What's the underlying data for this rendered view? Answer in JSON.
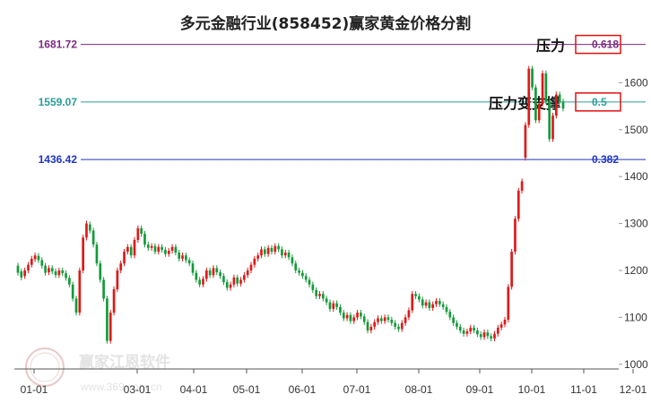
{
  "chart_data": {
    "type": "candlestick",
    "title": "多元金融行业(858452)赢家黄金价格分割",
    "x_ticks": [
      "01-01",
      "03-01",
      "04-01",
      "05-01",
      "06-01",
      "07-01",
      "08-01",
      "09-01",
      "10-01",
      "11-01",
      "12-01"
    ],
    "y_ticks": [
      1000,
      1100,
      1200,
      1300,
      1400,
      1500,
      1600
    ],
    "ylim": [
      990,
      1700
    ],
    "levels": [
      {
        "price_label": "1681.72",
        "price": 1681.72,
        "ratio_label": "0.618",
        "color": "#7b2a7f",
        "annotation": "压力"
      },
      {
        "price_label": "1559.07",
        "price": 1559.07,
        "ratio_label": "0.5",
        "color": "#2a9c9c",
        "annotation": "压力变支撑"
      },
      {
        "price_label": "1436.42",
        "price": 1436.42,
        "ratio_label": "0.382",
        "color": "#1f35c9",
        "annotation": ""
      }
    ],
    "series": [
      {
        "values": [
          [
            1210,
            1195
          ],
          [
            1198,
            1185
          ],
          [
            1188,
            1200
          ],
          [
            1200,
            1212
          ],
          [
            1212,
            1225
          ],
          [
            1224,
            1232
          ],
          [
            1231,
            1222
          ],
          [
            1222,
            1210
          ],
          [
            1210,
            1195
          ],
          [
            1196,
            1205
          ],
          [
            1205,
            1198
          ],
          [
            1198,
            1190
          ],
          [
            1190,
            1200
          ],
          [
            1200,
            1194
          ],
          [
            1194,
            1184
          ],
          [
            1184,
            1170
          ],
          [
            1170,
            1140
          ],
          [
            1140,
            1110
          ],
          [
            1110,
            1200
          ],
          [
            1200,
            1270
          ],
          [
            1270,
            1300
          ],
          [
            1298,
            1285
          ],
          [
            1285,
            1255
          ],
          [
            1255,
            1215
          ],
          [
            1215,
            1180
          ],
          [
            1180,
            1140
          ],
          [
            1140,
            1050
          ],
          [
            1050,
            1110
          ],
          [
            1110,
            1160
          ],
          [
            1160,
            1200
          ],
          [
            1200,
            1215
          ],
          [
            1215,
            1240
          ],
          [
            1240,
            1250
          ],
          [
            1250,
            1232
          ],
          [
            1232,
            1265
          ],
          [
            1265,
            1290
          ],
          [
            1290,
            1278
          ],
          [
            1278,
            1255
          ],
          [
            1255,
            1248
          ],
          [
            1248,
            1252
          ],
          [
            1252,
            1240
          ],
          [
            1240,
            1250
          ],
          [
            1250,
            1244
          ],
          [
            1244,
            1235
          ],
          [
            1235,
            1242
          ],
          [
            1242,
            1250
          ],
          [
            1250,
            1238
          ],
          [
            1238,
            1225
          ],
          [
            1225,
            1232
          ],
          [
            1232,
            1222
          ],
          [
            1222,
            1215
          ],
          [
            1215,
            1195
          ],
          [
            1195,
            1180
          ],
          [
            1180,
            1170
          ],
          [
            1170,
            1182
          ],
          [
            1182,
            1200
          ],
          [
            1200,
            1190
          ],
          [
            1190,
            1205
          ],
          [
            1205,
            1196
          ],
          [
            1196,
            1188
          ],
          [
            1188,
            1175
          ],
          [
            1175,
            1163
          ],
          [
            1163,
            1170
          ],
          [
            1170,
            1185
          ],
          [
            1185,
            1172
          ],
          [
            1172,
            1180
          ],
          [
            1180,
            1190
          ],
          [
            1190,
            1200
          ],
          [
            1200,
            1212
          ],
          [
            1212,
            1225
          ],
          [
            1225,
            1232
          ],
          [
            1232,
            1245
          ],
          [
            1245,
            1235
          ],
          [
            1235,
            1248
          ],
          [
            1248,
            1240
          ],
          [
            1240,
            1252
          ],
          [
            1252,
            1245
          ],
          [
            1245,
            1232
          ],
          [
            1232,
            1238
          ],
          [
            1238,
            1228
          ],
          [
            1228,
            1215
          ],
          [
            1215,
            1200
          ],
          [
            1200,
            1195
          ],
          [
            1195,
            1188
          ],
          [
            1188,
            1180
          ],
          [
            1180,
            1170
          ],
          [
            1170,
            1158
          ],
          [
            1158,
            1145
          ],
          [
            1145,
            1150
          ],
          [
            1150,
            1140
          ],
          [
            1140,
            1132
          ],
          [
            1132,
            1118
          ],
          [
            1118,
            1130
          ],
          [
            1130,
            1122
          ],
          [
            1122,
            1110
          ],
          [
            1110,
            1098
          ],
          [
            1098,
            1105
          ],
          [
            1105,
            1092
          ],
          [
            1092,
            1100
          ],
          [
            1100,
            1110
          ],
          [
            1110,
            1102
          ],
          [
            1102,
            1090
          ],
          [
            1090,
            1072
          ],
          [
            1072,
            1080
          ],
          [
            1080,
            1090
          ],
          [
            1090,
            1098
          ],
          [
            1098,
            1092
          ],
          [
            1092,
            1100
          ],
          [
            1100,
            1095
          ],
          [
            1095,
            1088
          ],
          [
            1088,
            1080
          ],
          [
            1080,
            1075
          ],
          [
            1075,
            1088
          ],
          [
            1088,
            1100
          ],
          [
            1100,
            1115
          ],
          [
            1115,
            1150
          ],
          [
            1150,
            1145
          ],
          [
            1145,
            1138
          ],
          [
            1138,
            1125
          ],
          [
            1125,
            1132
          ],
          [
            1132,
            1120
          ],
          [
            1120,
            1128
          ],
          [
            1128,
            1135
          ],
          [
            1135,
            1128
          ],
          [
            1128,
            1122
          ],
          [
            1122,
            1112
          ],
          [
            1112,
            1100
          ],
          [
            1100,
            1088
          ],
          [
            1088,
            1080
          ],
          [
            1080,
            1072
          ],
          [
            1072,
            1065
          ],
          [
            1065,
            1070
          ],
          [
            1070,
            1078
          ],
          [
            1078,
            1072
          ],
          [
            1072,
            1064
          ],
          [
            1064,
            1058
          ],
          [
            1058,
            1068
          ],
          [
            1068,
            1060
          ],
          [
            1060,
            1055
          ],
          [
            1055,
            1065
          ],
          [
            1065,
            1078
          ],
          [
            1078,
            1085
          ],
          [
            1085,
            1095
          ],
          [
            1095,
            1165
          ],
          [
            1165,
            1240
          ],
          [
            1240,
            1310
          ],
          [
            1310,
            1370
          ],
          [
            1370,
            1390
          ],
          [
            1440,
            1510
          ],
          [
            1510,
            1630
          ],
          [
            1630,
            1590
          ],
          [
            1590,
            1520
          ],
          [
            1520,
            1555
          ],
          [
            1555,
            1620
          ],
          [
            1620,
            1560
          ],
          [
            1560,
            1480
          ],
          [
            1480,
            1530
          ],
          [
            1530,
            1575
          ],
          [
            1575,
            1560
          ],
          [
            1560,
            1545
          ]
        ]
      }
    ],
    "watermark": "赢家江恩软件",
    "watermark_url": "www.369.com.cn",
    "logo_text": "赢家财富"
  }
}
